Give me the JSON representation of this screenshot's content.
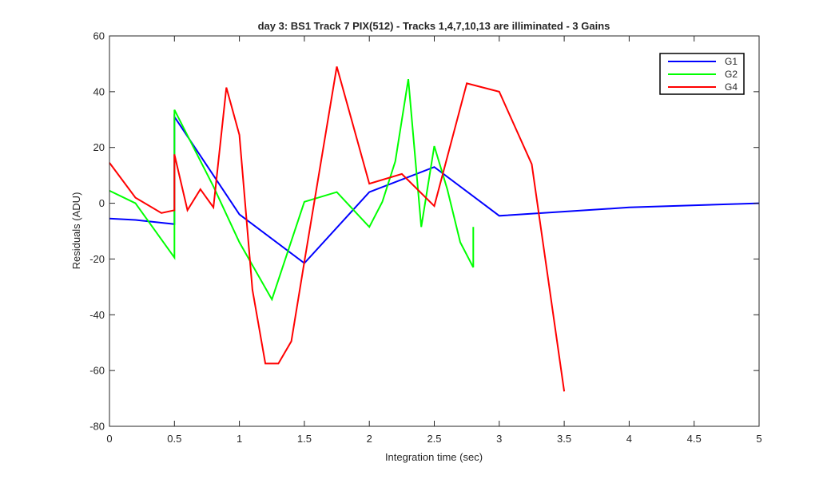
{
  "chart_data": {
    "type": "line",
    "title": "day 3: BS1  Track 7 PIX(512) - Tracks 1,4,7,10,13 are illiminated - 3 Gains",
    "xlabel": "Integration time (sec)",
    "ylabel": "Residuals (ADU)",
    "xlim": [
      0,
      5
    ],
    "ylim": [
      -80,
      60
    ],
    "xticks": [
      0,
      0.5,
      1,
      1.5,
      2,
      2.5,
      3,
      3.5,
      4,
      4.5,
      5
    ],
    "xtick_labels": [
      "0",
      "0.5",
      "1",
      "1.5",
      "2",
      "2.5",
      "3",
      "3.5",
      "4",
      "4.5",
      "5"
    ],
    "yticks": [
      -80,
      -60,
      -40,
      -20,
      0,
      20,
      40,
      60
    ],
    "ytick_labels": [
      "-80",
      "-60",
      "-40",
      "-20",
      "0",
      "20",
      "40",
      "60"
    ],
    "grid": false,
    "legend_position": "top-right",
    "series": [
      {
        "name": "G1",
        "color": "#0000ff",
        "x": [
          0,
          0.2,
          0.5,
          0.5,
          1,
          1.5,
          2,
          2.5,
          3,
          4,
          5
        ],
        "y": [
          -5.5,
          -6,
          -7.5,
          31,
          -4,
          -21.5,
          4,
          13,
          -4.5,
          -1.5,
          0
        ]
      },
      {
        "name": "G2",
        "color": "#00ff00",
        "x": [
          0,
          0.2,
          0.5,
          0.5,
          0.8,
          1,
          1.25,
          1.5,
          1.75,
          2,
          2.1,
          2.2,
          2.3,
          2.4,
          2.5,
          2.6,
          2.7,
          2.8,
          2.8
        ],
        "y": [
          4.5,
          0,
          -19.5,
          33.5,
          6,
          -14,
          -34.5,
          0.5,
          4,
          -8.5,
          0.5,
          15,
          44.5,
          -8.5,
          20.5,
          5,
          -14,
          -23,
          -8.5
        ]
      },
      {
        "name": "G4",
        "color": "#ff0000",
        "x": [
          0,
          0.2,
          0.4,
          0.5,
          0.5,
          0.6,
          0.7,
          0.8,
          0.9,
          1,
          1.1,
          1.2,
          1.3,
          1.4,
          1.5,
          1.75,
          2,
          2.25,
          2.5,
          2.75,
          3,
          3.25,
          3.5
        ],
        "y": [
          14.5,
          2,
          -3.5,
          -2.5,
          17.5,
          -2.5,
          5,
          -1.5,
          41.5,
          24.5,
          -31,
          -57.5,
          -57.5,
          -49.5,
          -21,
          49,
          7,
          10.5,
          -1,
          43,
          40,
          14,
          -67.5
        ]
      }
    ]
  }
}
